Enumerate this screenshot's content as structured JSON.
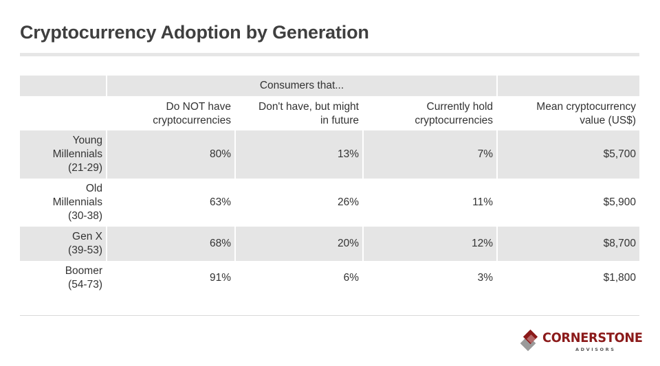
{
  "title": "Cryptocurrency Adoption by Generation",
  "chart_data": {
    "type": "table",
    "title": "Cryptocurrency Adoption by Generation",
    "group_header": "Consumers that...",
    "columns": [
      "Do NOT have cryptocurrencies",
      "Don't have, but might in future",
      "Currently hold cryptocurrencies",
      "Mean cryptocurrency value (US$)"
    ],
    "column_lines": [
      [
        "Do NOT have",
        "cryptocurrencies"
      ],
      [
        "Don't have, but might",
        "in future"
      ],
      [
        "Currently hold",
        "cryptocurrencies"
      ],
      [
        "Mean cryptocurrency",
        "value (US$)"
      ]
    ],
    "rows": [
      {
        "label": "Young Millennials (21-29)",
        "label_lines": [
          "Young",
          "Millennials",
          "(21-29)"
        ],
        "do_not_have": "80%",
        "might_in_future": "13%",
        "currently_hold": "7%",
        "mean_value": "$5,700"
      },
      {
        "label": "Old Millennials (30-38)",
        "label_lines": [
          "Old",
          "Millennials",
          "(30-38)"
        ],
        "do_not_have": "63%",
        "might_in_future": "26%",
        "currently_hold": "11%",
        "mean_value": "$5,900"
      },
      {
        "label": "Gen X (39-53)",
        "label_lines": [
          "Gen X",
          "(39-53)"
        ],
        "do_not_have": "68%",
        "might_in_future": "20%",
        "currently_hold": "12%",
        "mean_value": "$8,700"
      },
      {
        "label": "Boomer (54-73)",
        "label_lines": [
          "Boomer",
          "(54-73)"
        ],
        "do_not_have": "91%",
        "might_in_future": "6%",
        "currently_hold": "3%",
        "mean_value": "$1,800"
      }
    ]
  },
  "logo": {
    "name": "CORNERSTONE",
    "subtitle": "ADVISORS",
    "icon": "stacked-diamonds-icon"
  },
  "colors": {
    "title": "#3f3f3f",
    "text": "#333333",
    "shade": "#e5e5e5",
    "rule": "#e6e6e6",
    "brand_red": "#8b1a1a",
    "brand_gray": "#9a9a9a"
  }
}
